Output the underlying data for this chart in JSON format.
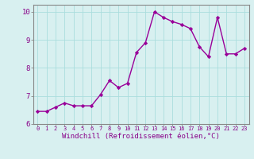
{
  "x": [
    0,
    1,
    2,
    3,
    4,
    5,
    6,
    7,
    8,
    9,
    10,
    11,
    12,
    13,
    14,
    15,
    16,
    17,
    18,
    19,
    20,
    21,
    22,
    23
  ],
  "y": [
    6.45,
    6.45,
    6.6,
    6.75,
    6.65,
    6.65,
    6.65,
    7.05,
    7.55,
    7.3,
    7.45,
    8.55,
    8.9,
    10.0,
    9.8,
    9.65,
    9.55,
    9.4,
    8.75,
    8.4,
    9.8,
    8.5,
    8.5,
    8.7
  ],
  "line_color": "#990099",
  "marker": "D",
  "marker_size": 2.2,
  "linewidth": 1.0,
  "xlabel": "Windchill (Refroidissement éolien,°C)",
  "xlabel_fontsize": 6.5,
  "xlim": [
    -0.5,
    23.5
  ],
  "ylim": [
    6.0,
    10.25
  ],
  "yticks": [
    6,
    7,
    8,
    9,
    10
  ],
  "xticks": [
    0,
    1,
    2,
    3,
    4,
    5,
    6,
    7,
    8,
    9,
    10,
    11,
    12,
    13,
    14,
    15,
    16,
    17,
    18,
    19,
    20,
    21,
    22,
    23
  ],
  "xtick_fontsize": 5.0,
  "ytick_fontsize": 6.5,
  "grid_color": "#aadddd",
  "bg_color": "#d8f0f0",
  "spine_color": "#888888",
  "label_color": "#880088",
  "tick_color": "#880088"
}
